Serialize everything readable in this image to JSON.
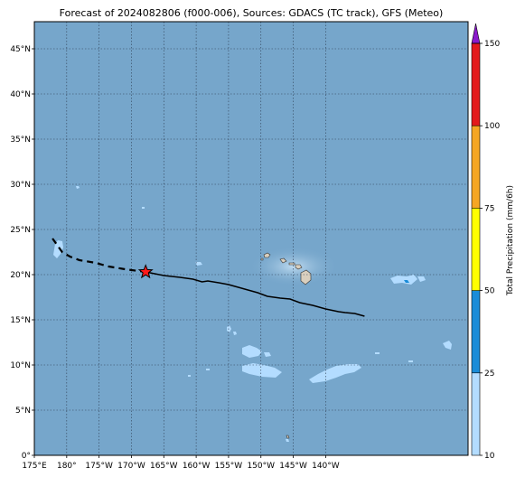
{
  "title": "Forecast of 2024082806 (f000-006), Sources: GDACS (TC track), GFS (Meteo)",
  "map": {
    "lon_range": [
      175,
      242
    ],
    "lat_range": [
      0,
      48
    ],
    "lon_ticks": [
      {
        "lon": 175,
        "label": "175°E"
      },
      {
        "lon": 180,
        "label": "180°"
      },
      {
        "lon": 185,
        "label": "175°W"
      },
      {
        "lon": 190,
        "label": "170°W"
      },
      {
        "lon": 195,
        "label": "165°W"
      },
      {
        "lon": 200,
        "label": "160°W"
      },
      {
        "lon": 205,
        "label": "155°W"
      },
      {
        "lon": 210,
        "label": "150°W"
      },
      {
        "lon": 215,
        "label": "145°W"
      },
      {
        "lon": 220,
        "label": "140°W"
      }
    ],
    "lat_ticks": [
      {
        "lat": 0,
        "label": "0°"
      },
      {
        "lat": 5,
        "label": "5°N"
      },
      {
        "lat": 10,
        "label": "10°N"
      },
      {
        "lat": 15,
        "label": "15°N"
      },
      {
        "lat": 20,
        "label": "20°N"
      },
      {
        "lat": 25,
        "label": "25°N"
      },
      {
        "lat": 30,
        "label": "30°N"
      },
      {
        "lat": 35,
        "label": "35°N"
      },
      {
        "lat": 40,
        "label": "40°N"
      },
      {
        "lat": 45,
        "label": "45°N"
      }
    ],
    "ocean_color": "#76a6cb",
    "grid": true,
    "tc_track_past": [
      [
        177.8,
        24.0
      ],
      [
        179.3,
        22.5
      ],
      [
        180.5,
        22.0
      ],
      [
        182,
        21.6
      ],
      [
        184.5,
        21.3
      ],
      [
        186.5,
        20.9
      ],
      [
        189,
        20.6
      ],
      [
        192.2,
        20.3
      ]
    ],
    "tc_track_forecast": [
      [
        192.2,
        20.3
      ],
      [
        195,
        19.9
      ],
      [
        197.5,
        19.7
      ],
      [
        199.5,
        19.5
      ],
      [
        200.9,
        19.2
      ],
      [
        201.8,
        19.3
      ],
      [
        203.5,
        19.1
      ],
      [
        205,
        18.9
      ],
      [
        206.5,
        18.6
      ],
      [
        208,
        18.3
      ],
      [
        209.5,
        18.0
      ],
      [
        211,
        17.6
      ],
      [
        213,
        17.4
      ],
      [
        214.5,
        17.3
      ],
      [
        216,
        16.9
      ],
      [
        218,
        16.6
      ],
      [
        220,
        16.2
      ],
      [
        222,
        15.9
      ],
      [
        223,
        15.8
      ],
      [
        224.5,
        15.7
      ],
      [
        226,
        15.4
      ]
    ],
    "tc_position": [
      192.2,
      20.3
    ]
  },
  "colorbar": {
    "label": "Total Precipitation (mm/6h)",
    "ticks": [
      "10",
      "25",
      "50",
      "75",
      "100",
      "150"
    ],
    "bins": [
      {
        "from": 10,
        "to": 25,
        "color": "#b3dcff"
      },
      {
        "from": 25,
        "to": 50,
        "color": "#1a8cd8"
      },
      {
        "from": 50,
        "to": 75,
        "color": "#ffff00"
      },
      {
        "from": 75,
        "to": 100,
        "color": "#f5a623"
      },
      {
        "from": 100,
        "to": 150,
        "color": "#e31a1c"
      },
      {
        "from": 150,
        "to": null,
        "color": "#8a1acb"
      }
    ]
  }
}
